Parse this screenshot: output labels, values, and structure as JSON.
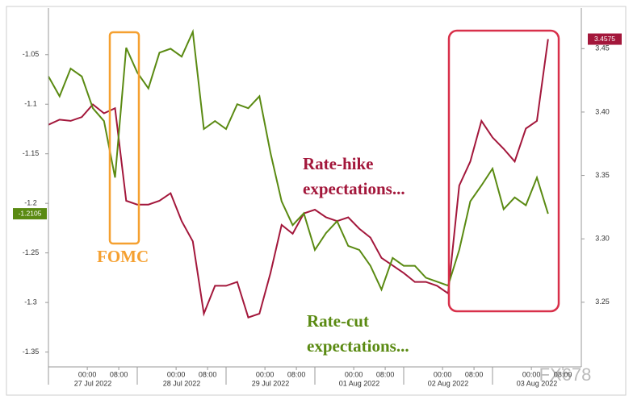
{
  "chart_data": {
    "type": "line",
    "x": [
      0,
      3,
      6,
      9,
      12,
      15,
      18,
      21,
      24,
      27,
      30,
      33,
      36,
      39,
      42,
      45,
      48,
      51,
      54,
      57,
      60,
      63,
      66,
      69,
      72,
      75,
      78,
      81,
      84,
      87,
      90,
      93,
      96,
      99,
      102,
      105,
      108,
      111,
      114,
      117,
      120,
      123,
      126,
      129,
      132,
      135
    ],
    "xlim": [
      0,
      144
    ],
    "xticks": [
      {
        "value": 10.5,
        "label": "00:00"
      },
      {
        "value": 19,
        "label": "08:00"
      },
      {
        "value": 34.5,
        "label": "00:00"
      },
      {
        "value": 43,
        "label": "08:00"
      },
      {
        "value": 58.5,
        "label": "00:00"
      },
      {
        "value": 67,
        "label": "08:00"
      },
      {
        "value": 82.5,
        "label": "00:00"
      },
      {
        "value": 91,
        "label": "08:00"
      },
      {
        "value": 106.5,
        "label": "00:00"
      },
      {
        "value": 115,
        "label": "08:00"
      },
      {
        "value": 130.5,
        "label": "00:00"
      },
      {
        "value": 139,
        "label": "08:00"
      }
    ],
    "day_labels": [
      "27 Jul 2022",
      "28 Jul 2022",
      "29 Jul 2022",
      "01 Aug 2022",
      "02 Aug 2022",
      "03 Aug 2022"
    ],
    "ylim": [
      -1.365,
      -1.003
    ],
    "yticks": [
      -1.05,
      -1.1,
      -1.15,
      -1.2,
      -1.25,
      -1.3,
      -1.35
    ],
    "y2lim": [
      3.199,
      3.482
    ],
    "y2ticks": [
      {
        "value": 3.25,
        "label": "3.25"
      },
      {
        "value": 3.3,
        "label": "3.30"
      },
      {
        "value": 3.35,
        "label": "3.35"
      },
      {
        "value": 3.4,
        "label": "3.40"
      },
      {
        "value": 3.45,
        "label": "3.45"
      }
    ],
    "series": [
      {
        "color": "#5a8a12",
        "values": [
          -1.072,
          -1.092,
          -1.064,
          -1.072,
          -1.104,
          -1.117,
          -1.174,
          -1.043,
          -1.068,
          -1.084,
          -1.048,
          -1.044,
          -1.052,
          -1.027,
          -1.125,
          -1.117,
          -1.125,
          -1.1,
          -1.104,
          -1.092,
          -1.149,
          -1.198,
          -1.222,
          -1.21,
          -1.247,
          -1.23,
          -1.218,
          -1.243,
          -1.247,
          -1.263,
          -1.287,
          -1.255,
          -1.263,
          -1.263,
          -1.275,
          -1.279,
          -1.283,
          -1.247,
          -1.198,
          -1.182,
          -1.165,
          -1.206,
          -1.194,
          -1.202,
          -1.174,
          -1.2105
        ]
      },
      {
        "color": "#a3173b",
        "axis": "y2",
        "values": [
          3.39,
          3.394,
          3.393,
          3.396,
          3.406,
          3.399,
          3.403,
          3.33,
          3.327,
          3.327,
          3.33,
          3.336,
          3.314,
          3.298,
          3.241,
          3.263,
          3.263,
          3.266,
          3.238,
          3.241,
          3.273,
          3.311,
          3.304,
          3.32,
          3.323,
          3.317,
          3.314,
          3.317,
          3.308,
          3.301,
          3.285,
          3.279,
          3.273,
          3.266,
          3.266,
          3.263,
          3.257,
          3.342,
          3.361,
          3.393,
          3.38,
          3.371,
          3.361,
          3.387,
          3.393,
          3.4575
        ]
      }
    ],
    "annotations": [
      "FOMC",
      "Rate-hike",
      "expectations...",
      "Rate-cut",
      "expectations..."
    ],
    "watermark": "FX678"
  }
}
